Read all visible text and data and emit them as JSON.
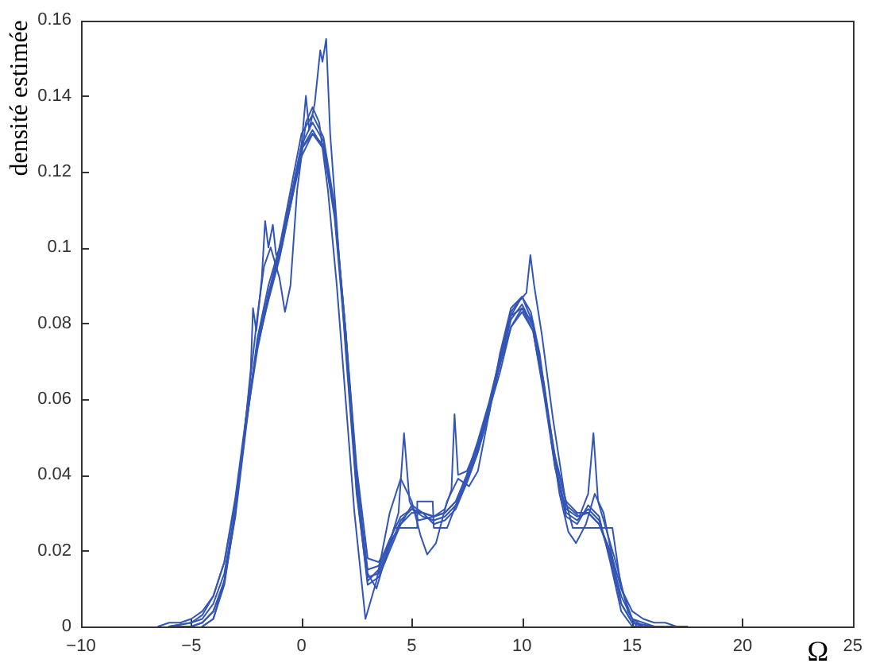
{
  "chart_data": {
    "type": "line",
    "ylabel": "densité estimée",
    "xlabel": "Ω",
    "xlim": [
      -10,
      25
    ],
    "xticks": [
      {
        "value": -10,
        "label": "−10"
      },
      {
        "value": -5,
        "label": "−5"
      },
      0,
      5,
      10,
      15,
      20,
      25
    ],
    "ylim": [
      0,
      0.16
    ],
    "yticks": [
      0,
      0.02,
      0.04,
      0.06,
      0.08,
      0.1,
      0.12,
      0.14,
      0.16
    ],
    "series": [
      {
        "color": "#3355b5",
        "x": [
          -6,
          -5,
          -4.5,
          -4,
          -3.5,
          -3,
          -2.5,
          -2,
          -1.5,
          -1,
          -0.5,
          0,
          0.5,
          1,
          1.5,
          2,
          2.5,
          3,
          3.5,
          4,
          4.5,
          5,
          5.5,
          6,
          6.5,
          7,
          7.5,
          8,
          8.5,
          9,
          9.5,
          10,
          10.5,
          11,
          11.5,
          12,
          12.5,
          13,
          13.5,
          14,
          14.5,
          15,
          16,
          17
        ],
        "values": [
          0,
          0.001,
          0.002,
          0.006,
          0.014,
          0.031,
          0.054,
          0.075,
          0.088,
          0.099,
          0.113,
          0.127,
          0.133,
          0.128,
          0.11,
          0.077,
          0.038,
          0.013,
          0.014,
          0.021,
          0.028,
          0.031,
          0.029,
          0.028,
          0.029,
          0.032,
          0.039,
          0.047,
          0.057,
          0.069,
          0.081,
          0.085,
          0.079,
          0.062,
          0.043,
          0.03,
          0.028,
          0.031,
          0.028,
          0.018,
          0.006,
          0.001,
          0,
          0
        ]
      },
      {
        "color": "#3355b5",
        "x": [
          -6,
          -5,
          -4.5,
          -4,
          -3.5,
          -3,
          -2.5,
          -2,
          -1.5,
          -1,
          -0.5,
          0,
          0.5,
          1,
          1.5,
          2,
          2.5,
          3,
          3.5,
          4,
          4.5,
          5,
          5.5,
          6,
          6.5,
          7,
          7.5,
          8,
          8.5,
          9,
          9.5,
          10,
          10.5,
          11,
          11.5,
          12,
          12.5,
          13,
          13.5,
          14,
          14.5,
          15,
          16,
          17
        ],
        "values": [
          0,
          0.001,
          0.003,
          0.008,
          0.017,
          0.034,
          0.056,
          0.074,
          0.086,
          0.097,
          0.111,
          0.126,
          0.131,
          0.126,
          0.108,
          0.075,
          0.037,
          0.015,
          0.016,
          0.023,
          0.029,
          0.031,
          0.03,
          0.029,
          0.03,
          0.033,
          0.04,
          0.049,
          0.059,
          0.071,
          0.082,
          0.084,
          0.078,
          0.061,
          0.042,
          0.031,
          0.029,
          0.03,
          0.027,
          0.019,
          0.008,
          0.002,
          0,
          0
        ]
      },
      {
        "color": "#3355b5",
        "x": [
          -6,
          -5,
          -4.5,
          -4,
          -3.5,
          -3,
          -2.5,
          -2,
          -1.5,
          -1,
          -0.5,
          0,
          0.5,
          1,
          1.5,
          2,
          2.5,
          3,
          3.5,
          4,
          4.5,
          5,
          5.5,
          6,
          6.5,
          7,
          7.5,
          8,
          8.5,
          9,
          9.5,
          10,
          10.5,
          11,
          11.5,
          12,
          12.5,
          13,
          13.5,
          14,
          14.5,
          15,
          16,
          17
        ],
        "values": [
          0,
          0,
          0.001,
          0.004,
          0.012,
          0.029,
          0.053,
          0.076,
          0.09,
          0.1,
          0.115,
          0.13,
          0.135,
          0.129,
          0.111,
          0.078,
          0.036,
          0.011,
          0.013,
          0.02,
          0.027,
          0.032,
          0.03,
          0.027,
          0.028,
          0.031,
          0.038,
          0.046,
          0.056,
          0.07,
          0.083,
          0.087,
          0.08,
          0.063,
          0.042,
          0.029,
          0.027,
          0.032,
          0.029,
          0.017,
          0.004,
          0,
          0,
          0
        ]
      },
      {
        "color": "#3355b5",
        "x": [
          -5,
          -4.5,
          -4,
          -3.5,
          -3,
          -2.5,
          -2,
          -1.7,
          -1.4,
          -1,
          -0.75,
          -0.5,
          -0.2,
          0.2,
          0.5,
          0.8,
          1.2,
          1.6,
          2,
          2.4,
          2.9,
          3.4,
          4,
          4.5,
          5,
          5.4,
          5.7,
          6.1,
          6.6,
          7.1,
          7.6,
          8,
          8.5,
          9,
          9.5,
          10,
          10.4,
          10.8,
          11.2,
          11.7,
          12.1,
          12.45,
          12.9,
          13.3,
          13.7,
          14.1,
          14.5,
          15,
          15.5,
          16
        ],
        "values": [
          0,
          0.001,
          0.004,
          0.012,
          0.03,
          0.056,
          0.082,
          0.095,
          0.1,
          0.092,
          0.083,
          0.09,
          0.115,
          0.133,
          0.137,
          0.133,
          0.115,
          0.09,
          0.06,
          0.03,
          0.002,
          0.012,
          0.03,
          0.039,
          0.033,
          0.024,
          0.019,
          0.022,
          0.033,
          0.039,
          0.037,
          0.041,
          0.056,
          0.072,
          0.084,
          0.087,
          0.083,
          0.072,
          0.055,
          0.035,
          0.025,
          0.022,
          0.027,
          0.035,
          0.03,
          0.018,
          0.006,
          0.001,
          0,
          0
        ]
      },
      {
        "color": "#3355b5",
        "x": [
          -4.5,
          -4,
          -3.5,
          -3,
          -2.6,
          -2.3,
          -2.2,
          -2.05,
          -1.8,
          -1.65,
          -1.5,
          -1.3,
          -1.15,
          -0.9,
          -0.6,
          -0.3,
          0,
          0.2,
          0.35,
          0.6,
          0.85,
          0.95,
          1.12,
          1.3,
          1.6,
          2,
          2.5,
          3,
          3.5,
          4,
          4.4,
          4.65,
          4.9,
          5.3,
          6,
          6.5,
          6.8,
          6.94,
          7.1,
          7.5,
          8,
          8.5,
          9,
          9.5,
          9.9,
          10.2,
          10.38,
          10.55,
          10.9,
          11.4,
          12,
          12.6,
          13,
          13.24,
          13.45,
          13.8,
          14.3,
          14.8,
          15.2
        ],
        "values": [
          0,
          0.002,
          0.012,
          0.031,
          0.05,
          0.068,
          0.084,
          0.078,
          0.092,
          0.107,
          0.1,
          0.106,
          0.098,
          0.1,
          0.109,
          0.118,
          0.127,
          0.14,
          0.131,
          0.138,
          0.152,
          0.149,
          0.155,
          0.13,
          0.106,
          0.073,
          0.035,
          0.012,
          0.015,
          0.022,
          0.03,
          0.051,
          0.033,
          0.028,
          0.029,
          0.031,
          0.036,
          0.056,
          0.04,
          0.041,
          0.048,
          0.058,
          0.071,
          0.082,
          0.086,
          0.088,
          0.098,
          0.09,
          0.077,
          0.055,
          0.032,
          0.029,
          0.035,
          0.051,
          0.033,
          0.026,
          0.016,
          0.004,
          0
        ]
      },
      {
        "color": "#3355b5",
        "x": [
          -4.5,
          -4,
          -3.5,
          -3,
          -2.5,
          -2,
          -1.5,
          -1,
          -0.5,
          0,
          0.5,
          1,
          1.5,
          2,
          2.5,
          3,
          3.4,
          3.8,
          4.2,
          5.2,
          5.25,
          5.95,
          6,
          6.6,
          7,
          7.5,
          8,
          8.5,
          9,
          9.5,
          10,
          10.5,
          11,
          11.5,
          12.3,
          14.1,
          14.5,
          15,
          15.5
        ],
        "values": [
          0,
          0.002,
          0.011,
          0.03,
          0.055,
          0.074,
          0.087,
          0.1,
          0.112,
          0.126,
          0.13,
          0.127,
          0.11,
          0.078,
          0.04,
          0.014,
          0.01,
          0.018,
          0.026,
          0.026,
          0.033,
          0.033,
          0.026,
          0.026,
          0.032,
          0.038,
          0.046,
          0.057,
          0.067,
          0.079,
          0.084,
          0.08,
          0.064,
          0.044,
          0.026,
          0.026,
          0.01,
          0.002,
          0
        ]
      },
      {
        "color": "#3355b5",
        "x": [
          -6.5,
          -6,
          -5.5,
          -5,
          -4.5,
          -4,
          -3.5,
          -3,
          -2.5,
          -2,
          -1.5,
          -1,
          -0.5,
          0,
          0.5,
          1,
          1.5,
          2,
          2.5,
          3,
          3.5,
          4,
          4.5,
          5,
          5.5,
          6,
          6.5,
          7,
          7.5,
          8,
          8.5,
          9,
          9.5,
          10,
          10.5,
          11,
          11.5,
          12,
          12.5,
          13,
          13.5,
          14,
          14.5,
          15,
          15.5,
          16,
          16.5,
          17,
          17.5
        ],
        "values": [
          0,
          0.001,
          0.001,
          0.002,
          0.004,
          0.008,
          0.017,
          0.033,
          0.054,
          0.073,
          0.087,
          0.098,
          0.111,
          0.124,
          0.13,
          0.126,
          0.109,
          0.078,
          0.042,
          0.018,
          0.017,
          0.022,
          0.027,
          0.03,
          0.03,
          0.029,
          0.03,
          0.033,
          0.04,
          0.048,
          0.058,
          0.069,
          0.079,
          0.083,
          0.078,
          0.062,
          0.045,
          0.033,
          0.03,
          0.03,
          0.027,
          0.02,
          0.01,
          0.004,
          0.002,
          0.001,
          0.001,
          0,
          0
        ]
      }
    ]
  }
}
